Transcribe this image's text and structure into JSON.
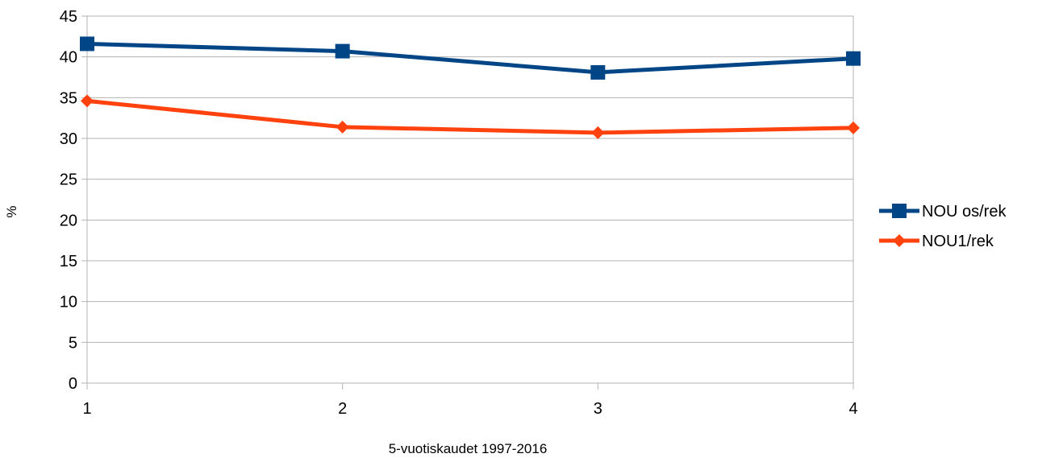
{
  "chart_data": {
    "type": "line",
    "title": "",
    "xlabel": "5-vuotiskaudet 1997-2016",
    "ylabel": "%",
    "x": [
      1,
      2,
      3,
      4
    ],
    "ylim": [
      0,
      45
    ],
    "yticks": [
      0,
      5,
      10,
      15,
      20,
      25,
      30,
      35,
      40,
      45
    ],
    "grid": true,
    "legend_position": "right",
    "series": [
      {
        "name": "NOU os/rek",
        "values": [
          41.6,
          40.7,
          38.1,
          39.8
        ],
        "color": "#004586",
        "marker": "square"
      },
      {
        "name": "NOU1/rek",
        "values": [
          34.6,
          31.4,
          30.7,
          31.3
        ],
        "color": "#ff420e",
        "marker": "diamond"
      }
    ]
  }
}
